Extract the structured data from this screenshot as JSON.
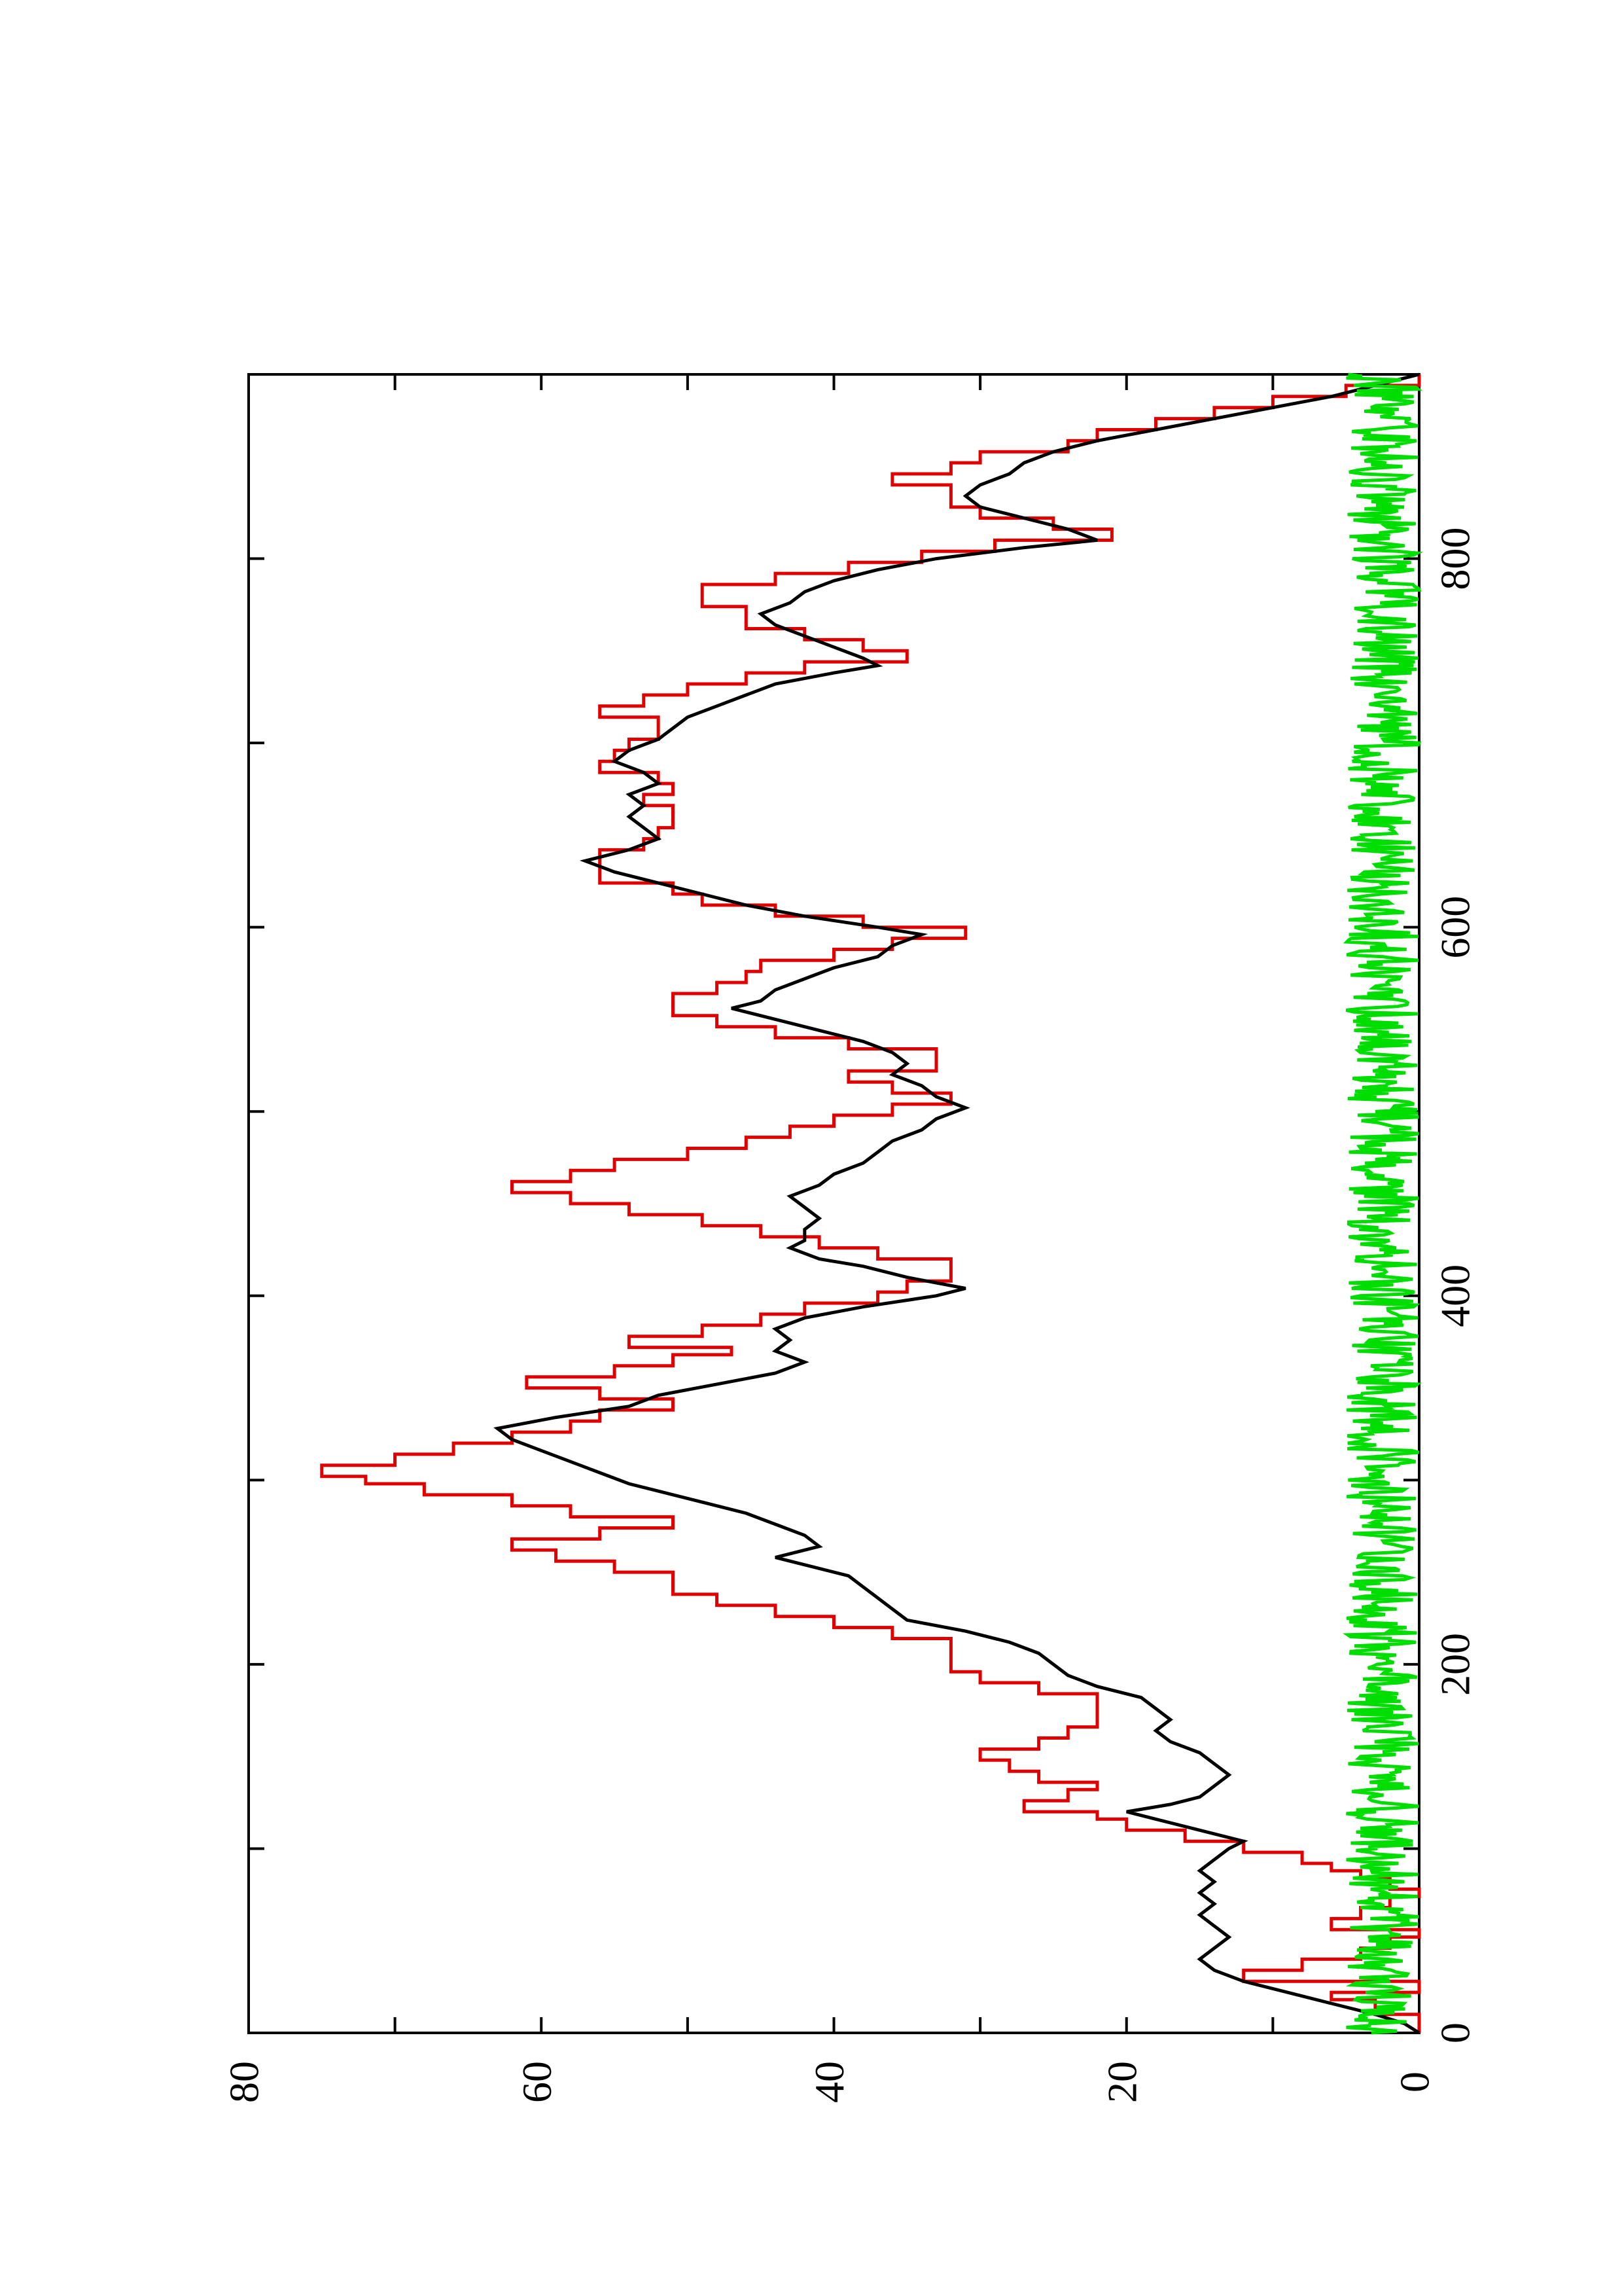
{
  "chart_data": {
    "type": "line",
    "title": "",
    "xlabel": "",
    "ylabel": "",
    "xlim": [
      0,
      900
    ],
    "ylim": [
      0,
      80
    ],
    "x_ticks": [
      0,
      200,
      400,
      600,
      800
    ],
    "x_minor_ticks": [
      100,
      300,
      500,
      700
    ],
    "y_ticks": [
      0,
      20,
      40,
      60,
      80
    ],
    "y_minor_ticks": [
      10,
      30,
      50,
      70
    ],
    "grid": false,
    "orientation": "rotated 90 degrees (x axis runs down the page, values increase to the left)",
    "series": [
      {
        "color": "#e00000",
        "style": "step",
        "points": [
          [
            0,
            0
          ],
          [
            5,
            0
          ],
          [
            10,
            3
          ],
          [
            18,
            6
          ],
          [
            22,
            0
          ],
          [
            28,
            12
          ],
          [
            34,
            8
          ],
          [
            40,
            4
          ],
          [
            46,
            2
          ],
          [
            52,
            0
          ],
          [
            56,
            6
          ],
          [
            62,
            4
          ],
          [
            68,
            2
          ],
          [
            74,
            0
          ],
          [
            78,
            2
          ],
          [
            84,
            4
          ],
          [
            88,
            6
          ],
          [
            92,
            8
          ],
          [
            98,
            12
          ],
          [
            104,
            16
          ],
          [
            110,
            20
          ],
          [
            116,
            22
          ],
          [
            120,
            27
          ],
          [
            126,
            24
          ],
          [
            132,
            22
          ],
          [
            136,
            26
          ],
          [
            142,
            28
          ],
          [
            148,
            30
          ],
          [
            154,
            26
          ],
          [
            160,
            24
          ],
          [
            166,
            22
          ],
          [
            172,
            22
          ],
          [
            176,
            22
          ],
          [
            184,
            26
          ],
          [
            190,
            30
          ],
          [
            196,
            32
          ],
          [
            202,
            32
          ],
          [
            208,
            32
          ],
          [
            214,
            36
          ],
          [
            220,
            40
          ],
          [
            226,
            44
          ],
          [
            232,
            48
          ],
          [
            238,
            51
          ],
          [
            244,
            51
          ],
          [
            250,
            55
          ],
          [
            256,
            59
          ],
          [
            262,
            62
          ],
          [
            268,
            56
          ],
          [
            274,
            51
          ],
          [
            280,
            58
          ],
          [
            286,
            62
          ],
          [
            292,
            68
          ],
          [
            298,
            72
          ],
          [
            302,
            75
          ],
          [
            308,
            70
          ],
          [
            314,
            66
          ],
          [
            320,
            62
          ],
          [
            326,
            58
          ],
          [
            332,
            56
          ],
          [
            338,
            51
          ],
          [
            344,
            56
          ],
          [
            350,
            61
          ],
          [
            356,
            55
          ],
          [
            362,
            51
          ],
          [
            368,
            47
          ],
          [
            372,
            54
          ],
          [
            378,
            49
          ],
          [
            384,
            45
          ],
          [
            390,
            42
          ],
          [
            396,
            37
          ],
          [
            402,
            35
          ],
          [
            408,
            32
          ],
          [
            414,
            32
          ],
          [
            420,
            37
          ],
          [
            426,
            41
          ],
          [
            432,
            45
          ],
          [
            438,
            49
          ],
          [
            444,
            54
          ],
          [
            450,
            58
          ],
          [
            456,
            62
          ],
          [
            462,
            58
          ],
          [
            468,
            55
          ],
          [
            474,
            50
          ],
          [
            480,
            46
          ],
          [
            486,
            43
          ],
          [
            492,
            40
          ],
          [
            498,
            36
          ],
          [
            504,
            32
          ],
          [
            510,
            36
          ],
          [
            516,
            39
          ],
          [
            522,
            33
          ],
          [
            528,
            33
          ],
          [
            534,
            39
          ],
          [
            540,
            44
          ],
          [
            546,
            48
          ],
          [
            552,
            51
          ],
          [
            558,
            51
          ],
          [
            564,
            48
          ],
          [
            570,
            46
          ],
          [
            576,
            45
          ],
          [
            582,
            40
          ],
          [
            588,
            36
          ],
          [
            594,
            31
          ],
          [
            600,
            38
          ],
          [
            606,
            44
          ],
          [
            612,
            49
          ],
          [
            618,
            51
          ],
          [
            624,
            56
          ],
          [
            630,
            56
          ],
          [
            636,
            56
          ],
          [
            642,
            53
          ],
          [
            648,
            52
          ],
          [
            654,
            51
          ],
          [
            660,
            51
          ],
          [
            666,
            53
          ],
          [
            672,
            51
          ],
          [
            678,
            52
          ],
          [
            684,
            56
          ],
          [
            690,
            55
          ],
          [
            696,
            54
          ],
          [
            702,
            52
          ],
          [
            708,
            52
          ],
          [
            714,
            56
          ],
          [
            720,
            53
          ],
          [
            726,
            50
          ],
          [
            732,
            46
          ],
          [
            738,
            42
          ],
          [
            744,
            35
          ],
          [
            750,
            38
          ],
          [
            756,
            42
          ],
          [
            762,
            46
          ],
          [
            768,
            46
          ],
          [
            774,
            49
          ],
          [
            780,
            49
          ],
          [
            786,
            44
          ],
          [
            792,
            39
          ],
          [
            798,
            34
          ],
          [
            804,
            29
          ],
          [
            810,
            21
          ],
          [
            816,
            25
          ],
          [
            822,
            30
          ],
          [
            828,
            32
          ],
          [
            834,
            32
          ],
          [
            840,
            36
          ],
          [
            846,
            32
          ],
          [
            852,
            30
          ],
          [
            858,
            24
          ],
          [
            864,
            22
          ],
          [
            870,
            18
          ],
          [
            876,
            14
          ],
          [
            882,
            10
          ],
          [
            888,
            5
          ],
          [
            894,
            0
          ],
          [
            900,
            0
          ]
        ]
      },
      {
        "color": "#000000",
        "style": "line",
        "points": [
          [
            0,
            0
          ],
          [
            5,
            1
          ],
          [
            10,
            3
          ],
          [
            16,
            6
          ],
          [
            22,
            9
          ],
          [
            28,
            12
          ],
          [
            34,
            14
          ],
          [
            40,
            15
          ],
          [
            46,
            14
          ],
          [
            52,
            13
          ],
          [
            58,
            14
          ],
          [
            64,
            15
          ],
          [
            70,
            14
          ],
          [
            76,
            15
          ],
          [
            82,
            14
          ],
          [
            88,
            15
          ],
          [
            94,
            14
          ],
          [
            100,
            13
          ],
          [
            104,
            12
          ],
          [
            110,
            15
          ],
          [
            116,
            18
          ],
          [
            120,
            20
          ],
          [
            124,
            17
          ],
          [
            128,
            15
          ],
          [
            134,
            14
          ],
          [
            140,
            13
          ],
          [
            146,
            14
          ],
          [
            152,
            15
          ],
          [
            158,
            17
          ],
          [
            164,
            18
          ],
          [
            170,
            17
          ],
          [
            176,
            18
          ],
          [
            182,
            19
          ],
          [
            188,
            22
          ],
          [
            194,
            24
          ],
          [
            200,
            25
          ],
          [
            206,
            26
          ],
          [
            212,
            28
          ],
          [
            218,
            31
          ],
          [
            224,
            35
          ],
          [
            230,
            36
          ],
          [
            236,
            37
          ],
          [
            242,
            38
          ],
          [
            248,
            39
          ],
          [
            254,
            42
          ],
          [
            258,
            44
          ],
          [
            264,
            41
          ],
          [
            270,
            42
          ],
          [
            276,
            44
          ],
          [
            282,
            46
          ],
          [
            288,
            49
          ],
          [
            294,
            52
          ],
          [
            298,
            54
          ],
          [
            304,
            56
          ],
          [
            310,
            58
          ],
          [
            316,
            60
          ],
          [
            322,
            62
          ],
          [
            328,
            63
          ],
          [
            334,
            59
          ],
          [
            340,
            54
          ],
          [
            346,
            52
          ],
          [
            352,
            48
          ],
          [
            358,
            44
          ],
          [
            364,
            42
          ],
          [
            370,
            44
          ],
          [
            376,
            43
          ],
          [
            382,
            44
          ],
          [
            388,
            42
          ],
          [
            394,
            38
          ],
          [
            400,
            33
          ],
          [
            404,
            31
          ],
          [
            410,
            35
          ],
          [
            416,
            38
          ],
          [
            420,
            41
          ],
          [
            426,
            43
          ],
          [
            430,
            42
          ],
          [
            436,
            42
          ],
          [
            442,
            41
          ],
          [
            448,
            42
          ],
          [
            454,
            43
          ],
          [
            460,
            41
          ],
          [
            466,
            40
          ],
          [
            472,
            38
          ],
          [
            478,
            37
          ],
          [
            484,
            36
          ],
          [
            490,
            34
          ],
          [
            496,
            33
          ],
          [
            502,
            31
          ],
          [
            508,
            33
          ],
          [
            514,
            34
          ],
          [
            520,
            36
          ],
          [
            526,
            35
          ],
          [
            532,
            36
          ],
          [
            538,
            38
          ],
          [
            544,
            41
          ],
          [
            550,
            44
          ],
          [
            556,
            47
          ],
          [
            560,
            45
          ],
          [
            566,
            44
          ],
          [
            572,
            42
          ],
          [
            578,
            40
          ],
          [
            584,
            37
          ],
          [
            590,
            36
          ],
          [
            596,
            34
          ],
          [
            600,
            37
          ],
          [
            606,
            42
          ],
          [
            612,
            46
          ],
          [
            618,
            49
          ],
          [
            624,
            52
          ],
          [
            630,
            55
          ],
          [
            636,
            57
          ],
          [
            642,
            54
          ],
          [
            648,
            52
          ],
          [
            654,
            53
          ],
          [
            660,
            54
          ],
          [
            666,
            53
          ],
          [
            672,
            54
          ],
          [
            678,
            52
          ],
          [
            684,
            53
          ],
          [
            690,
            55
          ],
          [
            696,
            54
          ],
          [
            702,
            52
          ],
          [
            708,
            51
          ],
          [
            714,
            50
          ],
          [
            720,
            48
          ],
          [
            726,
            46
          ],
          [
            732,
            44
          ],
          [
            738,
            40
          ],
          [
            742,
            37
          ],
          [
            746,
            38
          ],
          [
            752,
            40
          ],
          [
            758,
            42
          ],
          [
            764,
            44
          ],
          [
            770,
            45
          ],
          [
            776,
            43
          ],
          [
            782,
            42
          ],
          [
            788,
            40
          ],
          [
            794,
            37
          ],
          [
            800,
            33
          ],
          [
            806,
            27
          ],
          [
            810,
            22
          ],
          [
            816,
            24
          ],
          [
            822,
            27
          ],
          [
            828,
            30
          ],
          [
            834,
            31
          ],
          [
            840,
            30
          ],
          [
            846,
            28
          ],
          [
            852,
            27
          ],
          [
            858,
            25
          ],
          [
            864,
            22
          ],
          [
            870,
            18
          ],
          [
            876,
            14
          ],
          [
            882,
            10
          ],
          [
            888,
            6
          ],
          [
            894,
            3
          ],
          [
            900,
            0
          ]
        ]
      },
      {
        "color": "#00dd00",
        "style": "noise",
        "mean": 2.5,
        "amplitude": 2.5,
        "points_count": 900
      }
    ]
  }
}
